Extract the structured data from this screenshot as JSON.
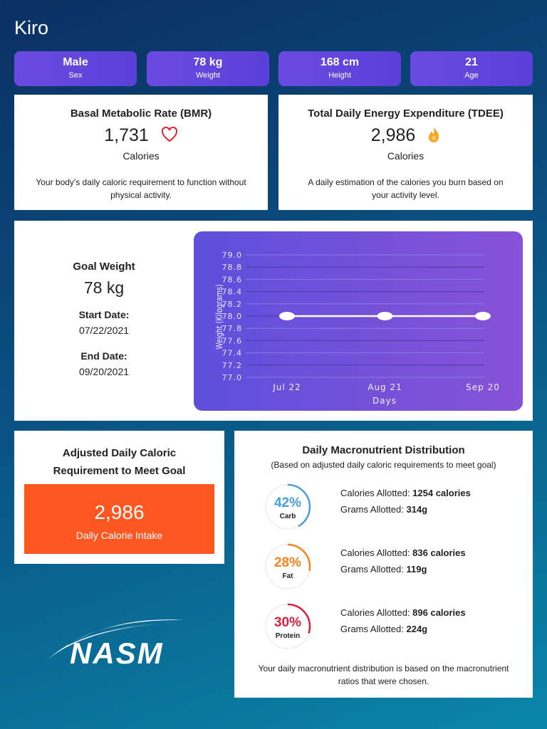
{
  "title": "Kiro",
  "stats": [
    {
      "value": "Male",
      "label": "Sex"
    },
    {
      "value": "78 kg",
      "label": "Weight"
    },
    {
      "value": "168 cm",
      "label": "Height"
    },
    {
      "value": "21",
      "label": "Age"
    }
  ],
  "bmr": {
    "title": "Basal Metabolic Rate (BMR)",
    "value": "1,731",
    "unit": "Calories",
    "desc": "Your body's daily caloric requirement to function without physical activity.",
    "icon": "heart-icon"
  },
  "tdee": {
    "title": "Total Daily Energy Expenditure (TDEE)",
    "value": "2,986",
    "unit": "Calories",
    "desc": "A daily estimation of the calories you burn based on your activity level.",
    "icon": "flame-icon"
  },
  "goal": {
    "title": "Goal Weight",
    "value": "78 kg",
    "start_label": "Start Date:",
    "start": "07/22/2021",
    "end_label": "End Date:",
    "end": "09/20/2021"
  },
  "chart_data": {
    "type": "line",
    "x": [
      "Jul 22",
      "Aug 21",
      "Sep 20"
    ],
    "values": [
      78.0,
      78.0,
      78.0
    ],
    "xlabel": "Days",
    "ylabel": "Weight (Kilograms)",
    "ylim": [
      77.0,
      79.0
    ],
    "yticks": [
      "79.0",
      "78.8",
      "78.6",
      "78.4",
      "78.2",
      "78.0",
      "77.8",
      "77.6",
      "77.4",
      "77.2",
      "77.0"
    ],
    "grid": true,
    "color": "#ffffff"
  },
  "adjusted": {
    "title_line1": "Adjusted Daily Caloric",
    "title_line2": "Requirement to Meet Goal",
    "value": "2,986",
    "label": "Daily Calorie Intake",
    "color": "#fe5722"
  },
  "macros": {
    "title": "Daily Macronutrient Distribution",
    "subtitle": "(Based on adjusted daily caloric requirements to meet goal)",
    "cal_label": "Calories Allotted: ",
    "gram_label": "Grams Allotted: ",
    "items": [
      {
        "pct": "42%",
        "percent": 42,
        "name": "Carb",
        "calories": "1254 calories",
        "grams": "314g",
        "color": "#4a9fd8"
      },
      {
        "pct": "28%",
        "percent": 28,
        "name": "Fat",
        "calories": "836 calories",
        "grams": "119g",
        "color": "#f5841f"
      },
      {
        "pct": "30%",
        "percent": 30,
        "name": "Protein",
        "calories": "896 calories",
        "grams": "224g",
        "color": "#dc1f3c"
      }
    ],
    "footer": "Your daily macronutrient distribution is based on the macronutrient ratios that were chosen."
  },
  "logo": "NASM"
}
